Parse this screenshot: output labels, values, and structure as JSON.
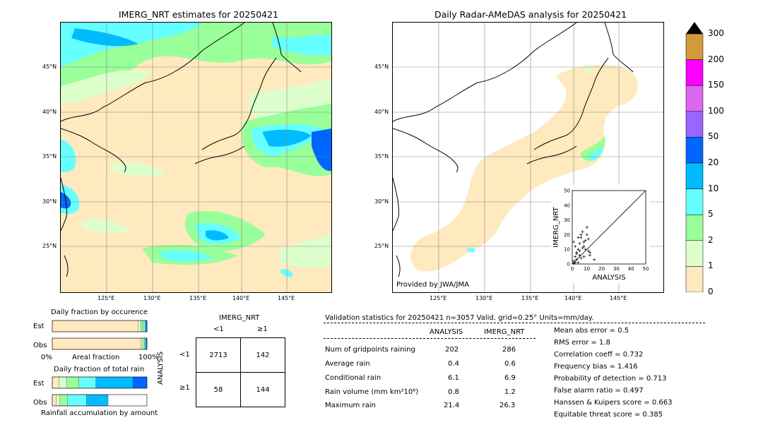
{
  "map_left": {
    "title": "IMERG_NRT estimates for 20250421",
    "lat_labels": [
      "45°N",
      "40°N",
      "35°N",
      "30°N",
      "25°N"
    ],
    "lon_labels": [
      "125°E",
      "130°E",
      "135°E",
      "140°E",
      "145°E"
    ]
  },
  "map_right": {
    "title": "Daily Radar-AMeDAS analysis for 20250421",
    "lat_labels": [
      "45°N",
      "40°N",
      "35°N",
      "30°N",
      "25°N"
    ],
    "lon_labels": [
      "125°E",
      "130°E",
      "135°E",
      "140°E",
      "145°E"
    ],
    "credit": "Provided by JWA/JMA"
  },
  "scatter_inset": {
    "ylabel": "IMERG_NRT",
    "xlabel": "ANALYSIS",
    "ticks": [
      "0",
      "10",
      "20",
      "30",
      "40",
      "50"
    ]
  },
  "colorbar": {
    "labels": [
      "300",
      "200",
      "150",
      "100",
      "50",
      "20",
      "10",
      "5",
      "2",
      "1",
      "0"
    ],
    "colors": [
      "#d29a3b",
      "#ff00ff",
      "#dd66ee",
      "#9966ff",
      "#0066ff",
      "#00bbff",
      "#66ffff",
      "#99ff99",
      "#ddffcc",
      "#ffe9bf"
    ]
  },
  "occurrence": {
    "title": "Daily fraction by occurence",
    "row_est": "Est",
    "row_obs": "Obs",
    "axis_left": "0%",
    "axis_mid": "Areal fraction",
    "axis_right": "100%"
  },
  "total_rain": {
    "title": "Daily fraction of total rain",
    "row_est": "Est",
    "row_obs": "Obs",
    "footer": "Rainfall accumulation by amount"
  },
  "contingency": {
    "col_header": "IMERG_NRT",
    "col_lt": "<1",
    "col_ge": "≥1",
    "row_header": "ANALYSIS",
    "row_lt": "<1",
    "row_ge": "≥1",
    "cells": [
      [
        "2713",
        "142"
      ],
      [
        "58",
        "144"
      ]
    ]
  },
  "validation": {
    "header": "Validation statistics for 20250421  n=3057 Valid. grid=0.25° Units=mm/day.",
    "col_analysis": "ANALYSIS",
    "col_imerg": "IMERG_NRT",
    "rows": [
      {
        "label": "Num of gridpoints raining",
        "analysis": "202",
        "imerg": "286"
      },
      {
        "label": "Average rain",
        "analysis": "0.4",
        "imerg": "0.6"
      },
      {
        "label": "Conditional rain",
        "analysis": "6.1",
        "imerg": "6.9"
      },
      {
        "label": "Rain volume (mm km²10⁶)",
        "analysis": "0.8",
        "imerg": "1.2"
      },
      {
        "label": "Maximum rain",
        "analysis": "21.4",
        "imerg": "26.3"
      }
    ],
    "scores": [
      "Mean abs error =    0.5",
      "RMS error =    1.8",
      "Correlation coeff =  0.732",
      "Frequency bias =  1.416",
      "Probability of detection =  0.713",
      "False alarm ratio =  0.497",
      "Hanssen & Kuipers score =  0.663",
      "Equitable threat score =  0.385"
    ]
  },
  "chart_data": [
    {
      "type": "scatter",
      "title": "",
      "xlabel": "ANALYSIS",
      "ylabel": "IMERG_NRT",
      "xlim": [
        0,
        50
      ],
      "ylim": [
        0,
        50
      ],
      "x": [
        1,
        2,
        3,
        4,
        5,
        6,
        7,
        8,
        9,
        10,
        11,
        12,
        1,
        2,
        3,
        5,
        6,
        8,
        10,
        2,
        4,
        6,
        9,
        12,
        15,
        3,
        7,
        5,
        1,
        4,
        8,
        11
      ],
      "y": [
        2,
        5,
        8,
        10,
        14,
        18,
        22,
        12,
        16,
        20,
        9,
        6,
        0.5,
        1,
        3,
        6,
        4,
        15,
        25,
        12,
        18,
        20,
        10,
        8,
        3,
        7,
        11,
        9,
        15,
        1,
        5,
        17
      ]
    },
    {
      "type": "bar",
      "title": "Daily fraction by occurence",
      "categories": [
        "Est",
        "Obs"
      ],
      "xlabel": "Areal fraction",
      "series": [
        {
          "name": "0-1",
          "values": [
            0.906,
            0.934
          ]
        },
        {
          "name": "1-2",
          "values": [
            0.03,
            0.02
          ]
        },
        {
          "name": "2-5",
          "values": [
            0.025,
            0.018
          ]
        },
        {
          "name": "5-10",
          "values": [
            0.02,
            0.012
          ]
        },
        {
          "name": "10-20",
          "values": [
            0.012,
            0.01
          ]
        },
        {
          "name": "20-50",
          "values": [
            0.007,
            0.006
          ]
        }
      ]
    },
    {
      "type": "bar",
      "title": "Daily fraction of total rain",
      "categories": [
        "Est",
        "Obs"
      ],
      "xlabel": "Rainfall accumulation by amount",
      "series": [
        {
          "name": "0-1",
          "values": [
            0.07,
            0.04
          ]
        },
        {
          "name": "1-2",
          "values": [
            0.08,
            0.04
          ]
        },
        {
          "name": "2-5",
          "values": [
            0.13,
            0.08
          ]
        },
        {
          "name": "5-10",
          "values": [
            0.18,
            0.2
          ]
        },
        {
          "name": "10-20",
          "values": [
            0.39,
            0.23
          ]
        },
        {
          "name": "20-50",
          "values": [
            0.15,
            0.0
          ]
        }
      ]
    }
  ]
}
